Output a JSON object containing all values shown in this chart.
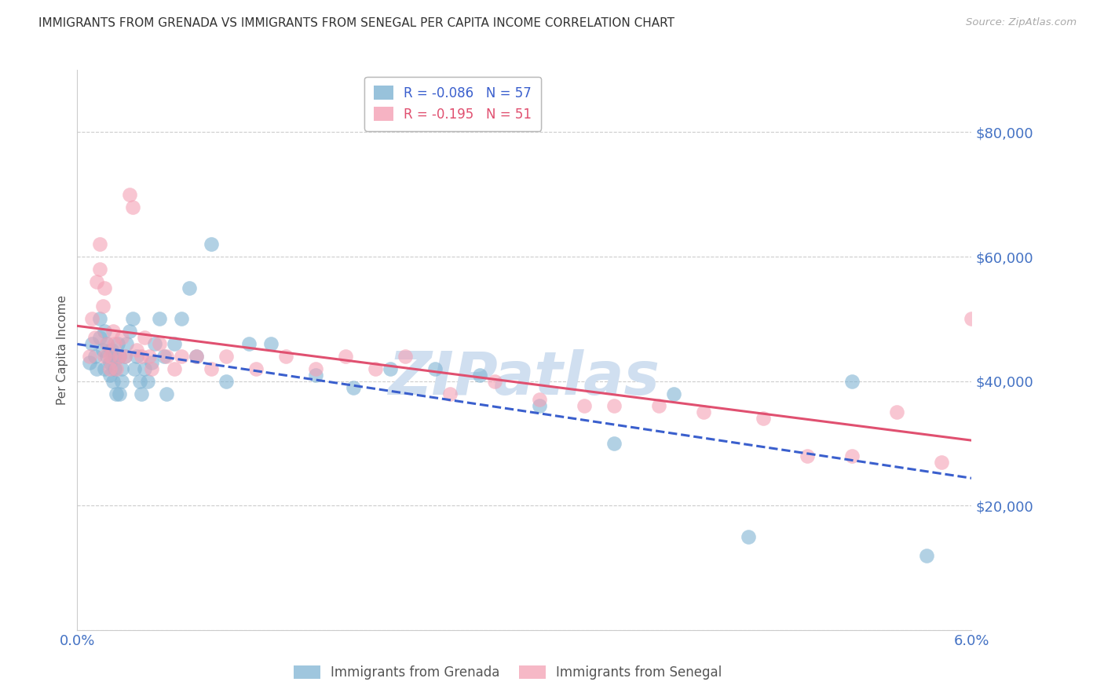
{
  "title": "IMMIGRANTS FROM GRENADA VS IMMIGRANTS FROM SENEGAL PER CAPITA INCOME CORRELATION CHART",
  "source": "Source: ZipAtlas.com",
  "ylabel": "Per Capita Income",
  "xlim": [
    0.0,
    0.06
  ],
  "ylim": [
    0,
    90000
  ],
  "yticks": [
    0,
    20000,
    40000,
    60000,
    80000
  ],
  "grenada_color": "#7fb3d3",
  "senegal_color": "#f4a0b4",
  "grenada_line_color": "#3a5fcd",
  "senegal_line_color": "#e05070",
  "background_color": "#ffffff",
  "grid_color": "#cccccc",
  "title_color": "#333333",
  "axis_label_color": "#555555",
  "ytick_color": "#4472c4",
  "xtick_color": "#4472c4",
  "watermark": "ZIPatlas",
  "watermark_color": "#d0dff0",
  "grenada_x": [
    0.0008,
    0.001,
    0.0012,
    0.0013,
    0.0015,
    0.0015,
    0.0017,
    0.0018,
    0.0018,
    0.002,
    0.002,
    0.0022,
    0.0022,
    0.0023,
    0.0024,
    0.0025,
    0.0025,
    0.0026,
    0.0027,
    0.0028,
    0.0028,
    0.003,
    0.003,
    0.0032,
    0.0033,
    0.0035,
    0.0037,
    0.0038,
    0.004,
    0.0042,
    0.0043,
    0.0045,
    0.0047,
    0.005,
    0.0052,
    0.0055,
    0.0058,
    0.006,
    0.0065,
    0.007,
    0.0075,
    0.008,
    0.009,
    0.01,
    0.0115,
    0.013,
    0.016,
    0.0185,
    0.021,
    0.024,
    0.027,
    0.031,
    0.036,
    0.04,
    0.045,
    0.052,
    0.057
  ],
  "grenada_y": [
    43000,
    46000,
    44000,
    42000,
    50000,
    47000,
    45000,
    48000,
    42000,
    46000,
    44000,
    43000,
    41000,
    45000,
    40000,
    44000,
    42000,
    38000,
    46000,
    44000,
    38000,
    42000,
    40000,
    44000,
    46000,
    48000,
    50000,
    42000,
    44000,
    40000,
    38000,
    42000,
    40000,
    43000,
    46000,
    50000,
    44000,
    38000,
    46000,
    50000,
    55000,
    44000,
    62000,
    40000,
    46000,
    46000,
    41000,
    39000,
    42000,
    42000,
    41000,
    36000,
    30000,
    38000,
    15000,
    40000,
    12000
  ],
  "senegal_x": [
    0.0008,
    0.0012,
    0.0013,
    0.0015,
    0.0017,
    0.0018,
    0.002,
    0.0022,
    0.0024,
    0.0025,
    0.0026,
    0.0028,
    0.003,
    0.0032,
    0.0035,
    0.0037,
    0.004,
    0.0043,
    0.0045,
    0.0048,
    0.005,
    0.0055,
    0.006,
    0.0065,
    0.007,
    0.008,
    0.009,
    0.01,
    0.012,
    0.014,
    0.016,
    0.018,
    0.02,
    0.022,
    0.025,
    0.028,
    0.031,
    0.034,
    0.036,
    0.039,
    0.042,
    0.046,
    0.049,
    0.052,
    0.055,
    0.058,
    0.06,
    0.001,
    0.0015,
    0.0018,
    0.0022
  ],
  "senegal_y": [
    44000,
    47000,
    56000,
    58000,
    52000,
    55000,
    46000,
    44000,
    48000,
    46000,
    42000,
    44000,
    47000,
    44000,
    70000,
    68000,
    45000,
    44000,
    47000,
    44000,
    42000,
    46000,
    44000,
    42000,
    44000,
    44000,
    42000,
    44000,
    42000,
    44000,
    42000,
    44000,
    42000,
    44000,
    38000,
    40000,
    37000,
    36000,
    36000,
    36000,
    35000,
    34000,
    28000,
    28000,
    35000,
    27000,
    50000,
    50000,
    62000,
    44000,
    42000
  ]
}
